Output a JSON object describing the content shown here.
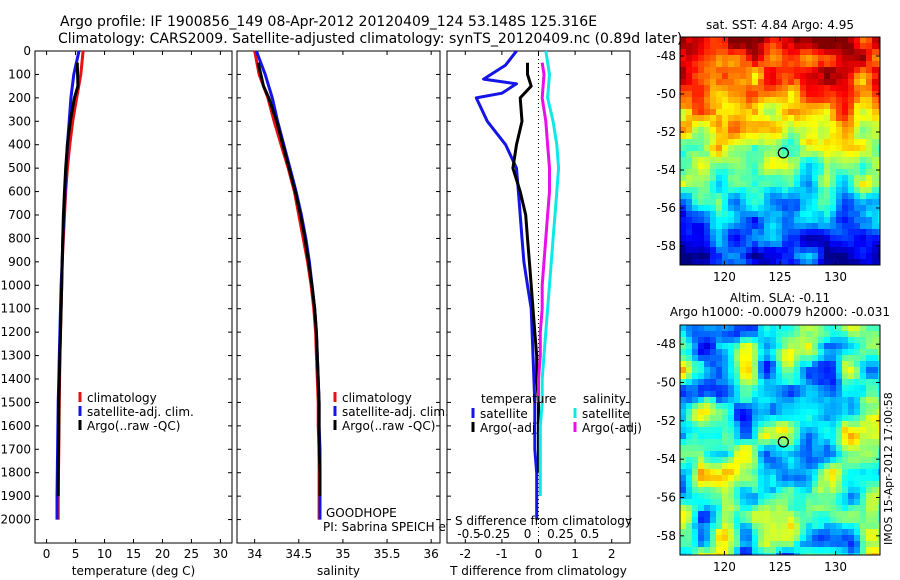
{
  "header": {
    "line1": "Argo profile: IF 1900856_149 08-Apr-2012 20120409_124 53.148S 125.316E",
    "line2": "Climatology: CARS2009. Satellite-adjusted climatology: synTS_20120409.nc (0.89d later)"
  },
  "colors": {
    "red": "#e81010",
    "blue": "#1414e6",
    "black": "#000000",
    "cyan": "#10e8e8",
    "magenta": "#e810e8"
  },
  "chart_data": [
    {
      "type": "line",
      "panel": "temperature",
      "xlabel": "temperature (deg C)",
      "ylabel": "",
      "xlim": [
        -2,
        32
      ],
      "ylim": [
        2100,
        0
      ],
      "xticks": [
        0,
        5,
        10,
        15,
        20,
        25,
        30
      ],
      "xtick_labels": [
        "0",
        "5",
        "10",
        "15",
        "20",
        "25",
        "30"
      ],
      "yticks": [
        0,
        100,
        200,
        300,
        400,
        500,
        600,
        700,
        800,
        900,
        1000,
        1100,
        1200,
        1300,
        1400,
        1500,
        1600,
        1700,
        1800,
        1900,
        2000
      ],
      "ytick_labels": [
        "0",
        "100",
        "200",
        "300",
        "400",
        "500",
        "600",
        "700",
        "800",
        "900",
        "1000",
        "1100",
        "1200",
        "1300",
        "1400",
        "1500",
        "1600",
        "1700",
        "1800",
        "1900",
        "2000"
      ],
      "legend": [
        "climatology",
        "satellite-adj. clim.",
        "Argo(..raw -QC)"
      ],
      "legend_position": "lower-left",
      "series": [
        {
          "name": "climatology",
          "color": "red",
          "x": [
            6.3,
            5.9,
            5.2,
            4.5,
            4.0,
            3.6,
            3.3,
            3.1,
            2.9,
            2.7,
            2.6,
            2.5,
            2.4,
            2.3,
            2.25,
            2.2,
            2.15,
            2.1,
            2.05,
            2.0,
            2.0
          ],
          "y": [
            0,
            100,
            200,
            300,
            400,
            500,
            600,
            700,
            800,
            900,
            1000,
            1100,
            1200,
            1300,
            1400,
            1500,
            1600,
            1700,
            1800,
            1900,
            2000
          ]
        },
        {
          "name": "satellite-adj. clim.",
          "color": "blue",
          "x": [
            5.6,
            4.7,
            4.2,
            3.9,
            3.6,
            3.4,
            3.2,
            3.0,
            2.8,
            2.7,
            2.5,
            2.4,
            2.3,
            2.2,
            2.1,
            2.0,
            1.95,
            1.9,
            1.85,
            1.8,
            1.8
          ],
          "y": [
            0,
            100,
            200,
            300,
            400,
            500,
            600,
            700,
            800,
            900,
            1000,
            1100,
            1200,
            1300,
            1400,
            1500,
            1600,
            1700,
            1800,
            1900,
            2000
          ]
        },
        {
          "name": "Argo(..raw -QC)",
          "color": "black",
          "x": [
            5.3,
            5.4,
            4.8,
            4.1,
            3.6,
            3.3,
            3.1,
            2.9,
            2.8,
            2.7,
            2.6,
            2.5,
            2.4,
            2.3,
            2.2,
            2.1,
            2.1,
            2.05,
            2.0,
            2.0
          ],
          "y": [
            50,
            150,
            200,
            300,
            400,
            500,
            600,
            700,
            800,
            900,
            1000,
            1100,
            1200,
            1300,
            1400,
            1500,
            1600,
            1700,
            1800,
            1900
          ]
        }
      ]
    },
    {
      "type": "line",
      "panel": "salinity",
      "xlabel": "salinity",
      "xlim": [
        33.8,
        36.1
      ],
      "ylim": [
        2100,
        0
      ],
      "xticks": [
        34,
        34.5,
        35,
        35.5,
        36
      ],
      "xtick_labels": [
        "34",
        "34.5",
        "35",
        "35.5",
        "36"
      ],
      "legend": [
        "climatology",
        "satellite-adj. clim.",
        "Argo(..raw -QC)"
      ],
      "legend_position": "lower-right",
      "annotation": [
        "GOODHOPE",
        "PI: Sabrina SPEICH et Michel ARHAN"
      ],
      "series": [
        {
          "name": "climatology",
          "color": "red",
          "x": [
            34.0,
            34.05,
            34.15,
            34.22,
            34.3,
            34.38,
            34.45,
            34.5,
            34.55,
            34.6,
            34.64,
            34.67,
            34.69,
            34.7,
            34.71,
            34.72,
            34.72,
            34.73,
            34.73,
            34.73,
            34.73
          ],
          "y": [
            0,
            100,
            200,
            300,
            400,
            500,
            600,
            700,
            800,
            900,
            1000,
            1100,
            1200,
            1300,
            1400,
            1500,
            1600,
            1700,
            1800,
            1900,
            2000
          ]
        },
        {
          "name": "satellite-adj. clim.",
          "color": "blue",
          "x": [
            34.02,
            34.12,
            34.2,
            34.26,
            34.33,
            34.4,
            34.47,
            34.53,
            34.58,
            34.62,
            34.65,
            34.68,
            34.7,
            34.71,
            34.72,
            34.73,
            34.73,
            34.74,
            34.74,
            34.74,
            34.74
          ],
          "y": [
            0,
            100,
            200,
            300,
            400,
            500,
            600,
            700,
            800,
            900,
            1000,
            1100,
            1200,
            1300,
            1400,
            1500,
            1600,
            1700,
            1800,
            1900,
            2000
          ]
        },
        {
          "name": "Argo(..raw -QC)",
          "color": "black",
          "x": [
            34.04,
            34.1,
            34.16,
            34.25,
            34.32,
            34.39,
            34.46,
            34.52,
            34.57,
            34.61,
            34.65,
            34.68,
            34.7,
            34.71,
            34.72,
            34.73,
            34.73,
            34.73,
            34.74,
            34.74
          ],
          "y": [
            50,
            150,
            200,
            300,
            400,
            500,
            600,
            700,
            800,
            900,
            1000,
            1100,
            1200,
            1300,
            1400,
            1500,
            1600,
            1700,
            1800,
            1900
          ]
        }
      ]
    },
    {
      "type": "line",
      "panel": "differences",
      "xlabel": "T difference from climatology",
      "xlabel2": "S difference from climatology",
      "xlim": [
        -2.5,
        2.5
      ],
      "ylim": [
        2100,
        0
      ],
      "xticks": [
        -2,
        -1,
        0,
        1,
        2
      ],
      "xtick_labels": [
        "-2",
        "-1",
        "0",
        "1",
        "2"
      ],
      "sticks_pos": [
        -1.9,
        -1.2,
        -0.3,
        0.6,
        1.4
      ],
      "stick_labels": [
        "-0.5",
        "-0.25",
        "0",
        "0.25",
        "0.5"
      ],
      "legend_titles": [
        "temperature",
        "salinity"
      ],
      "legend": [
        "satellite",
        "Argo(-adj)",
        "satellite",
        "Argo(-adj)"
      ],
      "legend_position": "lower",
      "series": [
        {
          "name": "satellite",
          "group": "temperature",
          "color": "blue",
          "x": [
            -0.6,
            -0.9,
            -1.5,
            -0.6,
            -1.0,
            -1.7,
            -1.4,
            -0.9,
            -0.6,
            -0.55,
            -0.5,
            -0.45,
            -0.4,
            -0.3,
            -0.2,
            -0.15,
            -0.1,
            -0.1,
            -0.05,
            -0.05,
            -0.05
          ],
          "y": [
            0,
            60,
            120,
            140,
            180,
            200,
            300,
            400,
            500,
            600,
            700,
            800,
            900,
            1000,
            1100,
            1300,
            1500,
            1700,
            1800,
            1900,
            2000
          ]
        },
        {
          "name": "Argo(-adj)",
          "group": "temperature",
          "color": "black",
          "x": [
            -0.3,
            -0.3,
            -0.2,
            -0.5,
            -0.45,
            -0.6,
            -0.7,
            -0.5,
            -0.35,
            -0.3,
            -0.25,
            -0.2,
            -0.15,
            -0.1,
            -0.05,
            -0.05,
            0.0,
            0.0,
            0.0,
            0.0
          ],
          "y": [
            50,
            100,
            150,
            200,
            300,
            400,
            500,
            600,
            700,
            800,
            900,
            1000,
            1100,
            1200,
            1300,
            1400,
            1500,
            1600,
            1700,
            1800
          ]
        },
        {
          "name": "satellite",
          "group": "salinity",
          "color": "cyan",
          "x": [
            0.2,
            0.3,
            0.25,
            0.4,
            0.5,
            0.55,
            0.5,
            0.45,
            0.4,
            0.35,
            0.3,
            0.25,
            0.2,
            0.15,
            0.1,
            0.1,
            0.05,
            0.05,
            0.05,
            0.05
          ],
          "y": [
            0,
            100,
            200,
            300,
            400,
            500,
            600,
            700,
            800,
            900,
            1000,
            1100,
            1200,
            1300,
            1400,
            1500,
            1600,
            1700,
            1800,
            1900
          ]
        },
        {
          "name": "Argo(-adj)",
          "group": "salinity",
          "color": "magenta",
          "x": [
            0.1,
            0.15,
            0.1,
            0.2,
            0.25,
            0.3,
            0.3,
            0.25,
            0.2,
            0.15,
            0.1,
            0.1,
            0.05,
            0.05,
            0.0,
            0.0
          ],
          "y": [
            50,
            100,
            200,
            300,
            400,
            500,
            600,
            700,
            800,
            900,
            1000,
            1100,
            1200,
            1300,
            1400,
            1500
          ]
        }
      ]
    },
    {
      "type": "heatmap",
      "panel": "sst-map",
      "title": "sat. SST: 4.84 Argo: 4.95",
      "xlim": [
        116,
        134
      ],
      "ylim": [
        -59,
        -47
      ],
      "xticks": [
        120,
        125,
        130
      ],
      "xtick_labels": [
        "120",
        "125",
        "130"
      ],
      "yticks": [
        -48,
        -50,
        -52,
        -54,
        -56,
        -58
      ],
      "ytick_labels": [
        "-48",
        "-50",
        "-52",
        "-54",
        "-56",
        "-58"
      ],
      "marker": {
        "x": 125.3,
        "y": -53.1
      }
    },
    {
      "type": "heatmap",
      "panel": "sla-map",
      "title": "Altim. SLA: -0.11",
      "subtitle": "Argo h1000: -0.00079 h2000: -0.031",
      "xlim": [
        116,
        134
      ],
      "ylim": [
        -59,
        -47
      ],
      "xticks": [
        120,
        125,
        130
      ],
      "xtick_labels": [
        "120",
        "125",
        "130"
      ],
      "yticks": [
        -48,
        -50,
        -52,
        -54,
        -56,
        -58
      ],
      "ytick_labels": [
        "-48",
        "-50",
        "-52",
        "-54",
        "-56",
        "-58"
      ],
      "marker": {
        "x": 125.3,
        "y": -53.1
      }
    }
  ],
  "side_text": "IMOS 15-Apr-2012 17:00:58"
}
